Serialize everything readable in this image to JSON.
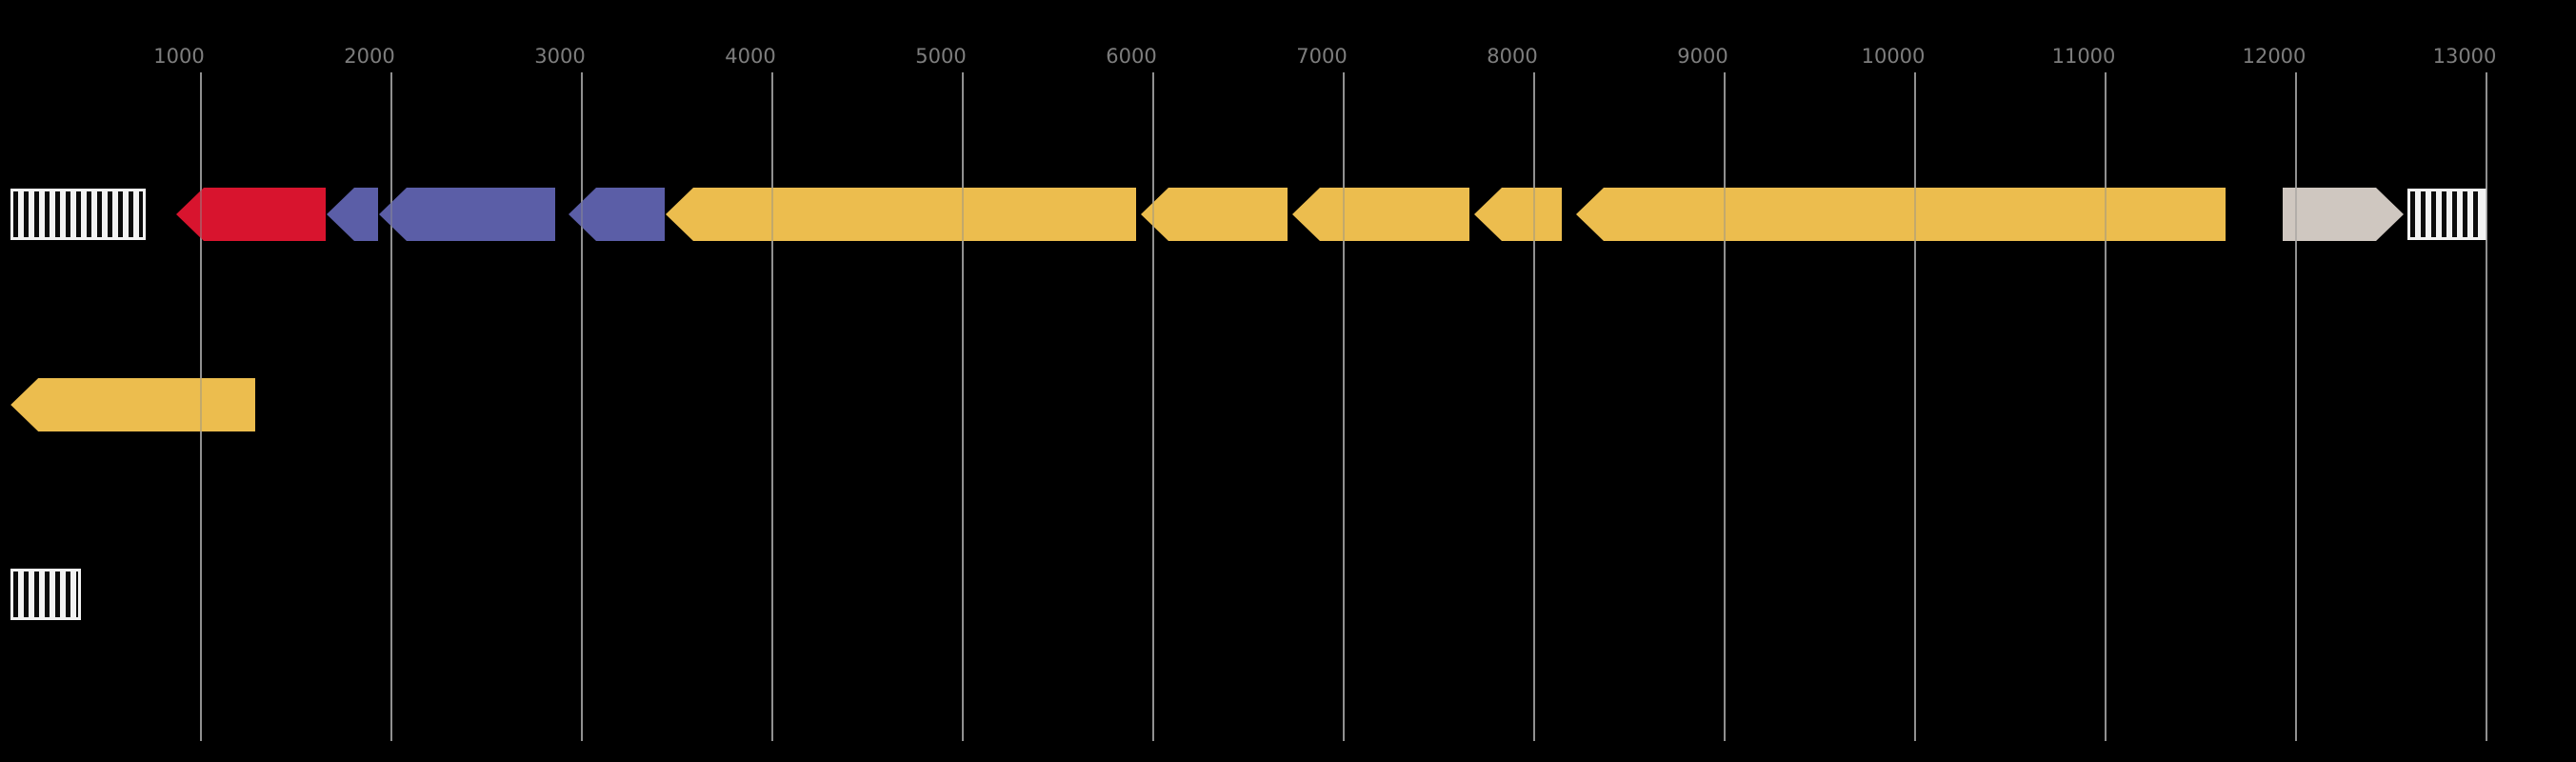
{
  "figure": {
    "kind": "gene-cluster-map",
    "background_color": "#000000"
  },
  "axis": {
    "tick_labels": [
      "1000",
      "2000",
      "3000",
      "4000",
      "5000",
      "6000",
      "7000",
      "8000",
      "9000",
      "10000",
      "11000",
      "12000",
      "13000"
    ],
    "tick_positions": [
      1000,
      2000,
      3000,
      4000,
      5000,
      6000,
      7000,
      8000,
      9000,
      10000,
      11000,
      12000,
      13000
    ],
    "range": [
      0,
      13000
    ],
    "label_color": "#7d7d7d",
    "gridline_color": "#909090",
    "grid_on": true
  },
  "palette": {
    "red": "#d8142e",
    "purple": "#5b5ea7",
    "gold": "#ecbd4e",
    "tan": "#cfc7c0",
    "hatch_white": "#f2f2f2",
    "hatch_black": "#0b0b0b"
  },
  "tracks": [
    {
      "id": "track-1",
      "features": [
        {
          "kind": "hatched-box",
          "start": 1,
          "end": 710
        },
        {
          "kind": "gene-arrow",
          "strand": "-",
          "color": "red",
          "start": 870,
          "end": 1655
        },
        {
          "kind": "gene-arrow",
          "strand": "-",
          "color": "purple",
          "start": 1660,
          "end": 1930
        },
        {
          "kind": "gene-arrow",
          "strand": "-",
          "color": "purple",
          "start": 1935,
          "end": 2860
        },
        {
          "kind": "gene-arrow",
          "strand": "-",
          "color": "purple",
          "start": 2930,
          "end": 3435
        },
        {
          "kind": "gene-arrow",
          "strand": "-",
          "color": "gold",
          "start": 3440,
          "end": 5910
        },
        {
          "kind": "gene-arrow",
          "strand": "-",
          "color": "gold",
          "start": 5935,
          "end": 6705
        },
        {
          "kind": "gene-arrow",
          "strand": "-",
          "color": "gold",
          "start": 6730,
          "end": 7660
        },
        {
          "kind": "gene-arrow",
          "strand": "-",
          "color": "gold",
          "start": 7685,
          "end": 8145
        },
        {
          "kind": "gene-arrow",
          "strand": "-",
          "color": "gold",
          "start": 8220,
          "end": 11630
        },
        {
          "kind": "gene-arrow",
          "strand": "+",
          "color": "tan",
          "start": 11930,
          "end": 12565
        },
        {
          "kind": "hatched-box",
          "start": 12585,
          "end": 13000
        }
      ]
    },
    {
      "id": "track-2",
      "features": [
        {
          "kind": "gene-arrow",
          "strand": "-",
          "color": "gold",
          "start": 1,
          "end": 1285
        }
      ]
    },
    {
      "id": "track-3",
      "features": [
        {
          "kind": "hatched-box",
          "start": 1,
          "end": 370
        }
      ]
    }
  ]
}
